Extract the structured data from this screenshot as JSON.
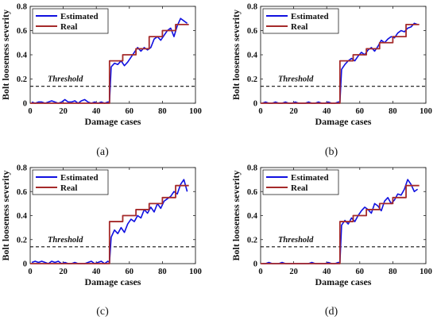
{
  "figure": {
    "panels": [
      {
        "caption": "(a)",
        "type": "line",
        "xlabel": "Damage cases",
        "ylabel": "Bolt looseness severity",
        "xlim": [
          0,
          100
        ],
        "ylim": [
          0,
          0.8
        ],
        "xticks": [
          0,
          20,
          40,
          60,
          80,
          100
        ],
        "yticks": [
          0,
          0.2,
          0.4,
          0.6,
          0.8
        ],
        "ytick_labels": [
          "0",
          "0.2",
          "0.4",
          "0.6",
          "0.8"
        ],
        "legend": [
          "Estimated",
          "Real"
        ],
        "legend_position": "top-left",
        "threshold": {
          "value": 0.14,
          "label": "Threshold"
        },
        "series": [
          {
            "name": "Estimated",
            "color": "#1010e0",
            "x": [
              1,
              3,
              5,
              7,
              9,
              11,
              13,
              15,
              17,
              19,
              21,
              23,
              25,
              27,
              29,
              31,
              33,
              35,
              37,
              39,
              41,
              43,
              45,
              47,
              48,
              49,
              51,
              53,
              55,
              57,
              59,
              61,
              63,
              65,
              67,
              69,
              71,
              73,
              75,
              77,
              79,
              81,
              83,
              85,
              87,
              89,
              91,
              93,
              95
            ],
            "y": [
              0.01,
              0.0,
              0.01,
              0.01,
              0.0,
              0.01,
              0.02,
              0.01,
              0.0,
              0.01,
              0.03,
              0.01,
              0.01,
              0.02,
              0.0,
              0.02,
              0.03,
              0.01,
              0.0,
              0.01,
              0.0,
              0.01,
              0.0,
              0.01,
              0.01,
              0.3,
              0.33,
              0.32,
              0.35,
              0.31,
              0.34,
              0.38,
              0.42,
              0.46,
              0.43,
              0.46,
              0.44,
              0.46,
              0.53,
              0.55,
              0.52,
              0.56,
              0.6,
              0.62,
              0.55,
              0.64,
              0.7,
              0.68,
              0.66
            ]
          },
          {
            "name": "Real",
            "color": "#a52a2a",
            "x": [
              0,
              48,
              48,
              56,
              56,
              64,
              64,
              72,
              72,
              80,
              80,
              88,
              88,
              96
            ],
            "y": [
              0,
              0,
              0.35,
              0.35,
              0.4,
              0.4,
              0.45,
              0.45,
              0.55,
              0.55,
              0.6,
              0.6,
              0.65,
              0.65
            ]
          }
        ]
      },
      {
        "caption": "(b)",
        "type": "line",
        "xlabel": "Damage cases",
        "ylabel": "Bolt looseness severity",
        "xlim": [
          0,
          100
        ],
        "ylim": [
          0,
          0.8
        ],
        "xticks": [
          0,
          20,
          40,
          60,
          80,
          100
        ],
        "yticks": [
          0,
          0.2,
          0.4,
          0.6,
          0.8
        ],
        "ytick_labels": [
          "0",
          "0.2",
          "0.4",
          "0.6",
          "0.8"
        ],
        "legend": [
          "Estimated",
          "Real"
        ],
        "legend_position": "top-left",
        "threshold": {
          "value": 0.14,
          "label": "Threshold"
        },
        "series": [
          {
            "name": "Estimated",
            "color": "#1010e0",
            "x": [
              1,
              3,
              5,
              7,
              9,
              11,
              13,
              15,
              17,
              19,
              21,
              23,
              25,
              27,
              29,
              31,
              33,
              35,
              37,
              39,
              41,
              43,
              45,
              47,
              48,
              49,
              51,
              53,
              55,
              57,
              59,
              61,
              63,
              65,
              67,
              69,
              71,
              73,
              75,
              77,
              79,
              81,
              83,
              85,
              87,
              89,
              91,
              93,
              95
            ],
            "y": [
              0.0,
              0.01,
              0.0,
              0.0,
              0.01,
              0.0,
              0.0,
              0.01,
              0.0,
              0.0,
              0.01,
              0.0,
              0.0,
              0.0,
              0.01,
              0.0,
              0.0,
              0.01,
              0.0,
              0.0,
              0.01,
              0.0,
              0.0,
              0.01,
              0.01,
              0.28,
              0.32,
              0.35,
              0.37,
              0.35,
              0.39,
              0.42,
              0.4,
              0.44,
              0.46,
              0.43,
              0.47,
              0.52,
              0.5,
              0.53,
              0.55,
              0.54,
              0.58,
              0.6,
              0.59,
              0.62,
              0.63,
              0.66,
              0.65
            ]
          },
          {
            "name": "Real",
            "color": "#a52a2a",
            "x": [
              0,
              48,
              48,
              56,
              56,
              64,
              64,
              72,
              72,
              80,
              80,
              88,
              88,
              96
            ],
            "y": [
              0,
              0,
              0.35,
              0.35,
              0.4,
              0.4,
              0.45,
              0.45,
              0.5,
              0.5,
              0.55,
              0.55,
              0.65,
              0.65
            ]
          }
        ]
      },
      {
        "caption": "(c)",
        "type": "line",
        "xlabel": "Damage cases",
        "ylabel": "Bolt looseness severity",
        "xlim": [
          0,
          100
        ],
        "ylim": [
          0,
          0.8
        ],
        "xticks": [
          0,
          20,
          40,
          60,
          80,
          100
        ],
        "yticks": [
          0,
          0.2,
          0.4,
          0.6,
          0.8
        ],
        "ytick_labels": [
          "0",
          "0.2",
          "0.4",
          "0.6",
          "0.8"
        ],
        "legend": [
          "Estimated",
          "Real"
        ],
        "legend_position": "top-left",
        "threshold": {
          "value": 0.14,
          "label": "Threshold"
        },
        "series": [
          {
            "name": "Estimated",
            "color": "#1010e0",
            "x": [
              1,
              3,
              5,
              7,
              9,
              11,
              13,
              15,
              17,
              19,
              21,
              23,
              25,
              27,
              29,
              31,
              33,
              35,
              37,
              39,
              41,
              43,
              45,
              47,
              48,
              49,
              51,
              53,
              55,
              57,
              59,
              61,
              63,
              65,
              67,
              69,
              71,
              73,
              75,
              77,
              79,
              81,
              83,
              85,
              87,
              89,
              91,
              93,
              95
            ],
            "y": [
              0.01,
              0.02,
              0.01,
              0.02,
              0.01,
              0.0,
              0.02,
              0.01,
              0.02,
              0.0,
              0.01,
              0.0,
              0.0,
              0.01,
              0.0,
              0.0,
              0.0,
              0.01,
              0.02,
              0.0,
              0.01,
              0.02,
              0.0,
              0.02,
              0.01,
              0.22,
              0.28,
              0.25,
              0.3,
              0.26,
              0.33,
              0.37,
              0.35,
              0.4,
              0.38,
              0.45,
              0.42,
              0.47,
              0.43,
              0.5,
              0.46,
              0.52,
              0.54,
              0.56,
              0.6,
              0.58,
              0.66,
              0.7,
              0.6
            ]
          },
          {
            "name": "Real",
            "color": "#a52a2a",
            "x": [
              0,
              48,
              48,
              56,
              56,
              64,
              64,
              72,
              72,
              80,
              80,
              88,
              88,
              96
            ],
            "y": [
              0,
              0,
              0.35,
              0.35,
              0.4,
              0.4,
              0.45,
              0.45,
              0.5,
              0.5,
              0.55,
              0.55,
              0.65,
              0.65
            ]
          }
        ]
      },
      {
        "caption": "(d)",
        "type": "line",
        "xlabel": "Damage cases",
        "ylabel": "Bolt looseness severity",
        "xlim": [
          0,
          100
        ],
        "ylim": [
          0,
          0.8
        ],
        "xticks": [
          0,
          20,
          40,
          60,
          80,
          100
        ],
        "yticks": [
          0,
          0.2,
          0.4,
          0.6,
          0.8
        ],
        "ytick_labels": [
          "0",
          "0.2",
          "0.4",
          "0.6",
          "0.8"
        ],
        "legend": [
          "Estimated",
          "Real"
        ],
        "legend_position": "top-left",
        "threshold": {
          "value": 0.14,
          "label": "Threshold"
        },
        "series": [
          {
            "name": "Estimated",
            "color": "#1010e0",
            "x": [
              1,
              3,
              5,
              7,
              9,
              11,
              13,
              15,
              17,
              19,
              21,
              23,
              25,
              27,
              29,
              31,
              33,
              35,
              37,
              39,
              41,
              43,
              45,
              47,
              48,
              49,
              51,
              53,
              55,
              57,
              59,
              61,
              63,
              65,
              67,
              69,
              71,
              73,
              75,
              77,
              79,
              81,
              83,
              85,
              87,
              89,
              91,
              93,
              95
            ],
            "y": [
              0.0,
              0.0,
              0.01,
              0.0,
              0.0,
              0.0,
              0.01,
              0.0,
              0.0,
              0.0,
              0.0,
              0.0,
              0.0,
              0.0,
              0.0,
              0.01,
              0.0,
              0.0,
              0.0,
              0.0,
              0.01,
              0.0,
              0.0,
              0.01,
              0.01,
              0.32,
              0.36,
              0.33,
              0.38,
              0.35,
              0.4,
              0.44,
              0.47,
              0.45,
              0.42,
              0.5,
              0.48,
              0.44,
              0.52,
              0.55,
              0.5,
              0.53,
              0.58,
              0.57,
              0.62,
              0.7,
              0.66,
              0.6,
              0.62
            ]
          },
          {
            "name": "Real",
            "color": "#a52a2a",
            "x": [
              0,
              48,
              48,
              56,
              56,
              64,
              64,
              72,
              72,
              80,
              80,
              88,
              88,
              96
            ],
            "y": [
              0,
              0,
              0.35,
              0.35,
              0.4,
              0.4,
              0.45,
              0.45,
              0.5,
              0.5,
              0.55,
              0.55,
              0.65,
              0.65
            ]
          }
        ]
      }
    ]
  }
}
